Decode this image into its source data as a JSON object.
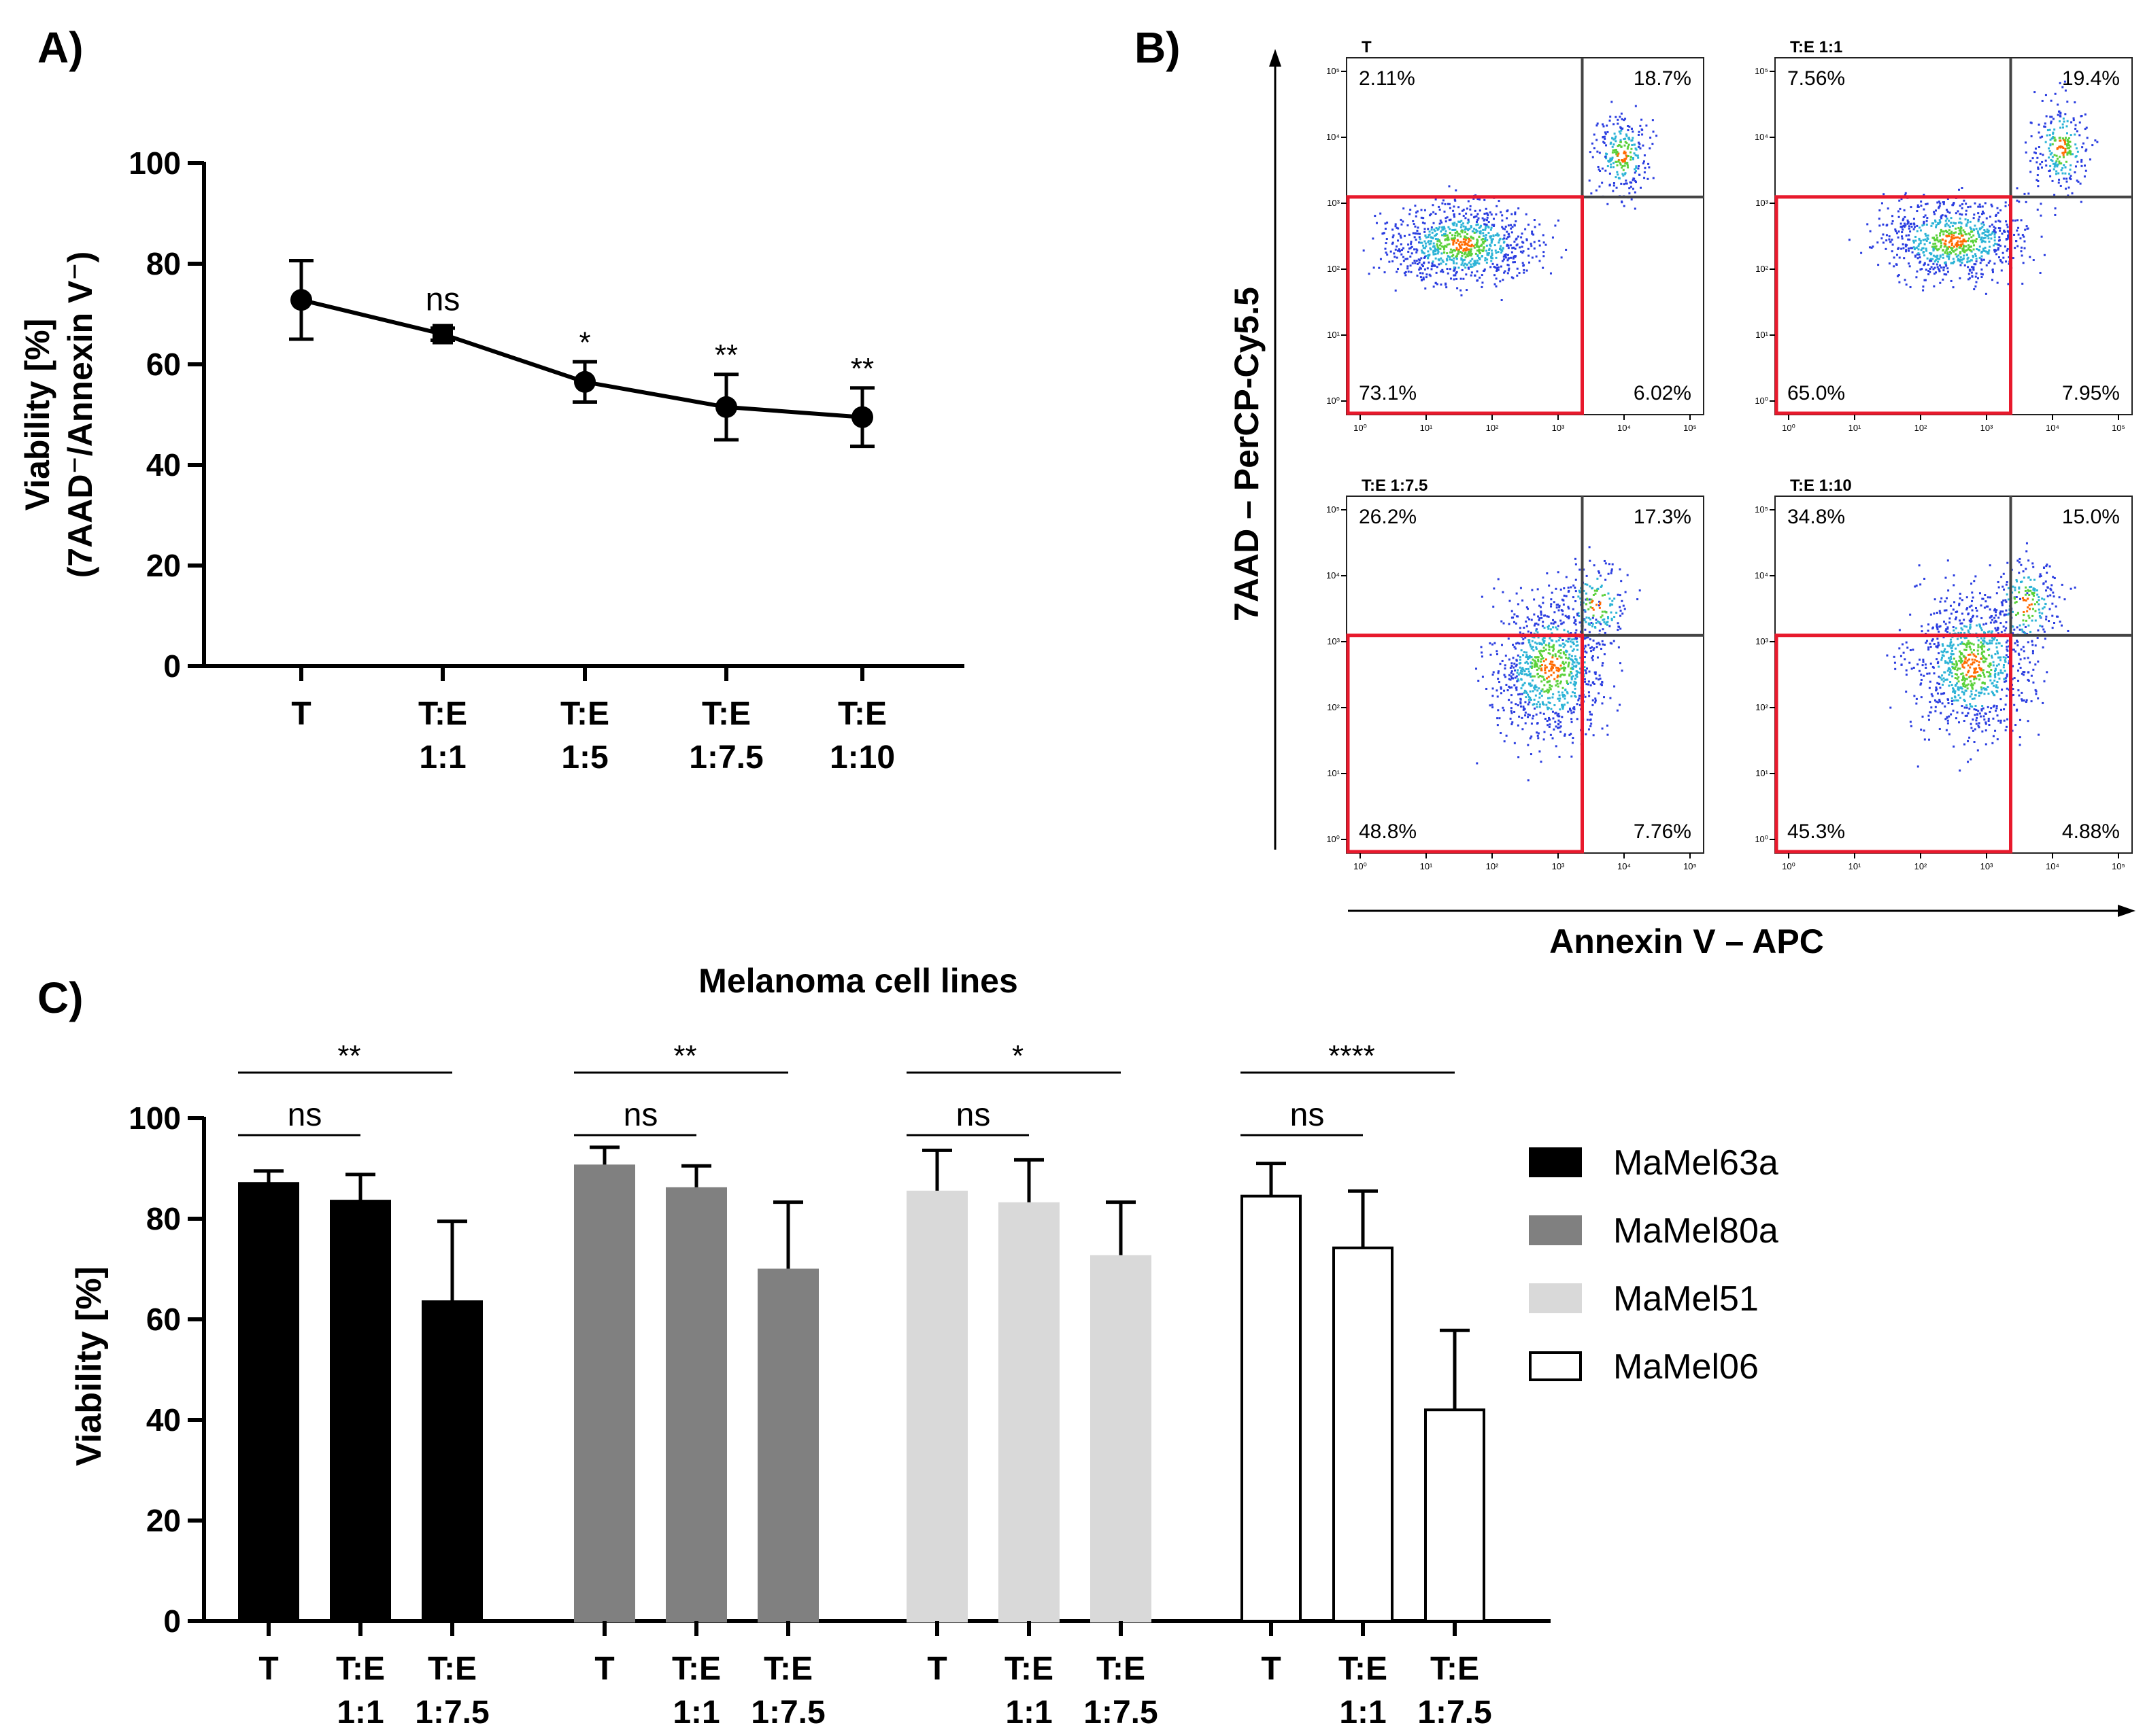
{
  "panels": {
    "a": {
      "label": "A)"
    },
    "b": {
      "label": "B)"
    },
    "c": {
      "label": "C)"
    }
  },
  "chart_data": [
    {
      "id": "A",
      "type": "line",
      "categories": [
        [
          "T"
        ],
        [
          "T:E",
          "1:1"
        ],
        [
          "T:E",
          "1:5"
        ],
        [
          "T:E",
          "1:7.5"
        ],
        [
          "T:E",
          "1:10"
        ]
      ],
      "values": [
        72.8,
        66.0,
        56.5,
        51.5,
        49.5
      ],
      "errors": [
        7.8,
        1.2,
        4.0,
        6.5,
        5.8
      ],
      "markers": [
        "circle",
        "square",
        "circle",
        "circle",
        "circle"
      ],
      "significance": [
        "",
        "ns",
        "*",
        "**",
        "**"
      ],
      "ylabel_line1": "Viability [%]",
      "ylabel_line2": "(7AAD⁻/Annexin V⁻)",
      "ylim": [
        0,
        100
      ],
      "yticks": [
        0,
        20,
        40,
        60,
        80,
        100
      ]
    },
    {
      "id": "B",
      "type": "scatter",
      "xlabel": "Annexin V – APC",
      "ylabel": "7AAD – PerCP-Cy5.5",
      "axis_ticks": [
        "10⁰",
        "10¹",
        "10²",
        "10³",
        "10⁴",
        "10⁵"
      ],
      "plots": [
        {
          "title": "T",
          "quadrants": {
            "ul": "2.11%",
            "ur": "18.7%",
            "ll": "73.1%",
            "lr": "6.02%"
          }
        },
        {
          "title": "T:E 1:1",
          "quadrants": {
            "ul": "7.56%",
            "ur": "19.4%",
            "ll": "65.0%",
            "lr": "7.95%"
          }
        },
        {
          "title": "T:E 1:7.5",
          "quadrants": {
            "ul": "26.2%",
            "ur": "17.3%",
            "ll": "48.8%",
            "lr": "7.76%"
          }
        },
        {
          "title": "T:E 1:10",
          "quadrants": {
            "ul": "34.8%",
            "ur": "15.0%",
            "ll": "45.3%",
            "lr": "4.88%"
          }
        }
      ]
    },
    {
      "id": "C",
      "type": "bar",
      "title": "Melanoma cell lines",
      "ylabel": "Viability [%]",
      "ylim": [
        0,
        100
      ],
      "yticks": [
        0,
        20,
        40,
        60,
        80,
        100
      ],
      "categories": [
        [
          "T"
        ],
        [
          "T:E",
          "1:1"
        ],
        [
          "T:E",
          "1:7.5"
        ]
      ],
      "series": [
        {
          "name": "MaMel63a",
          "color": "#000000",
          "values": [
            87,
            83.5,
            63.5
          ],
          "errors": [
            2.5,
            5.3,
            16
          ],
          "sig_short": "ns",
          "sig_long": "**"
        },
        {
          "name": "MaMel80a",
          "color": "#808080",
          "values": [
            90.5,
            86,
            69.8
          ],
          "errors": [
            3.7,
            4.5,
            13.5
          ],
          "sig_short": "ns",
          "sig_long": "**"
        },
        {
          "name": "MaMel51",
          "color": "#d9d9d9",
          "values": [
            85.3,
            83,
            72.5
          ],
          "errors": [
            8.3,
            8.7,
            10.8
          ],
          "sig_short": "ns",
          "sig_long": "*"
        },
        {
          "name": "MaMel06",
          "color": "#ffffff",
          "values": [
            84.5,
            74.2,
            42
          ],
          "errors": [
            6.5,
            11.3,
            15.8
          ],
          "sig_short": "ns",
          "sig_long": "****"
        }
      ]
    }
  ]
}
